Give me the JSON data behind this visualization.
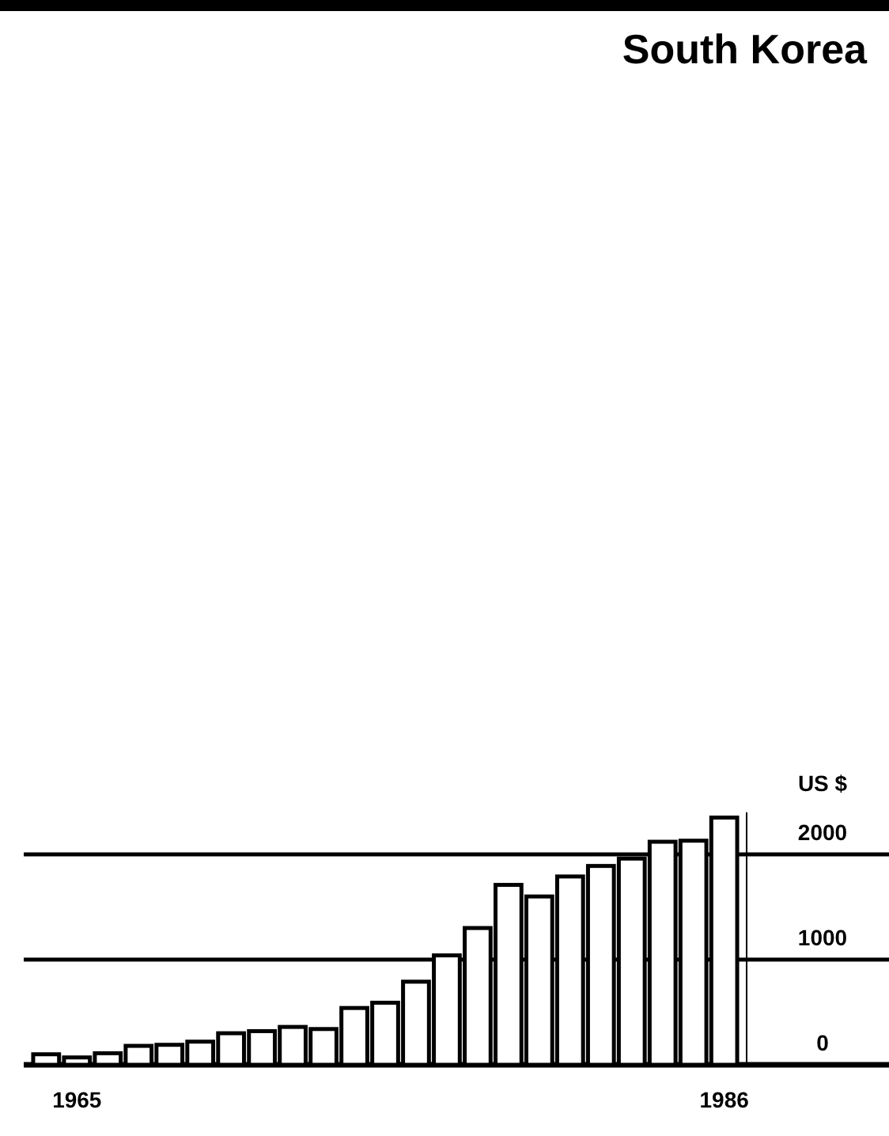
{
  "chart_data": {
    "type": "bar",
    "title": "South Korea",
    "ylabel": "US $",
    "categories": [
      null,
      "1965",
      null,
      null,
      null,
      null,
      null,
      null,
      null,
      null,
      null,
      null,
      null,
      null,
      null,
      null,
      null,
      null,
      null,
      null,
      null,
      null,
      "1986"
    ],
    "values": [
      100,
      70,
      110,
      180,
      190,
      220,
      300,
      320,
      360,
      340,
      540,
      590,
      790,
      1040,
      1300,
      1710,
      1600,
      1790,
      1890,
      1960,
      2120,
      2130,
      2350
    ],
    "color": "#ffffff",
    "ylim": [
      0,
      2400
    ],
    "yticks": [
      0,
      1000,
      2000
    ],
    "grid": "y"
  }
}
